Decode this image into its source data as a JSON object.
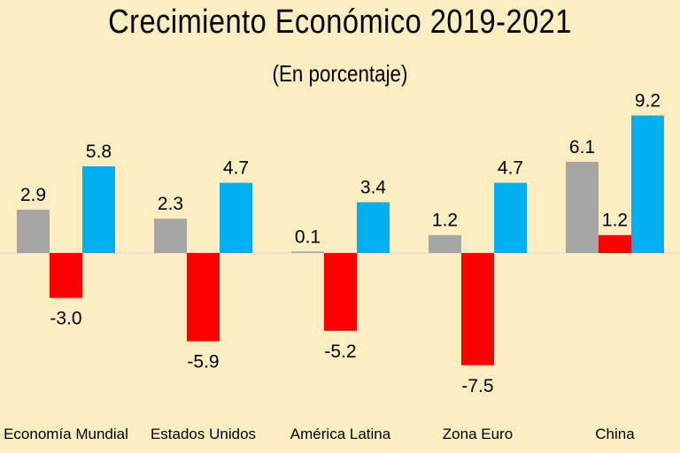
{
  "chart_data": {
    "type": "bar",
    "title": "Crecimiento Económico 2019-2021",
    "subtitle": "(En porcentaje)",
    "categories": [
      "Economía Mundial",
      "Estados Unidos",
      "América Latina",
      "Zona Euro",
      "China"
    ],
    "series": [
      {
        "values": [
          2.9,
          2.3,
          0.1,
          1.2,
          6.1
        ],
        "color": "#a6a6a6"
      },
      {
        "values": [
          -3.0,
          -5.9,
          -5.2,
          -7.5,
          1.2
        ],
        "color": "#ff0000"
      },
      {
        "values": [
          5.8,
          4.7,
          3.4,
          4.7,
          9.2
        ],
        "color": "#00b0f0"
      }
    ],
    "data_labels": [
      [
        "2.9",
        "2.3",
        "0.1",
        "1.2",
        "6.1"
      ],
      [
        "-3.0",
        "-5.9",
        "-5.2",
        "-7.5",
        "1.2"
      ],
      [
        "5.8",
        "4.7",
        "3.4",
        "4.7",
        "9.2"
      ]
    ],
    "ylim": [
      -7.5,
      9.2
    ],
    "grid": false,
    "legend": "none"
  }
}
